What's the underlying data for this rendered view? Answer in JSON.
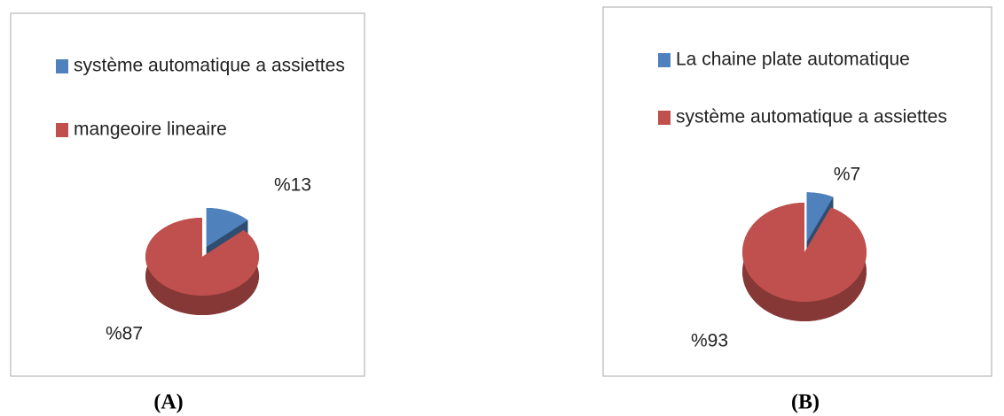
{
  "chart_data": [
    {
      "type": "pie",
      "caption": "(A)",
      "categories": [
        "système automatique a assiettes",
        "mangeoire lineaire"
      ],
      "values": [
        13,
        87
      ],
      "value_labels": [
        "%13",
        "%87"
      ],
      "colors": [
        "#4f81bd",
        "#c0504d"
      ]
    },
    {
      "type": "pie",
      "caption": "(B)",
      "categories": [
        "La chaine plate automatique",
        "système automatique a assiettes"
      ],
      "values": [
        7,
        93
      ],
      "value_labels": [
        "%7",
        "%93"
      ],
      "colors": [
        "#4f81bd",
        "#c0504d"
      ]
    }
  ]
}
